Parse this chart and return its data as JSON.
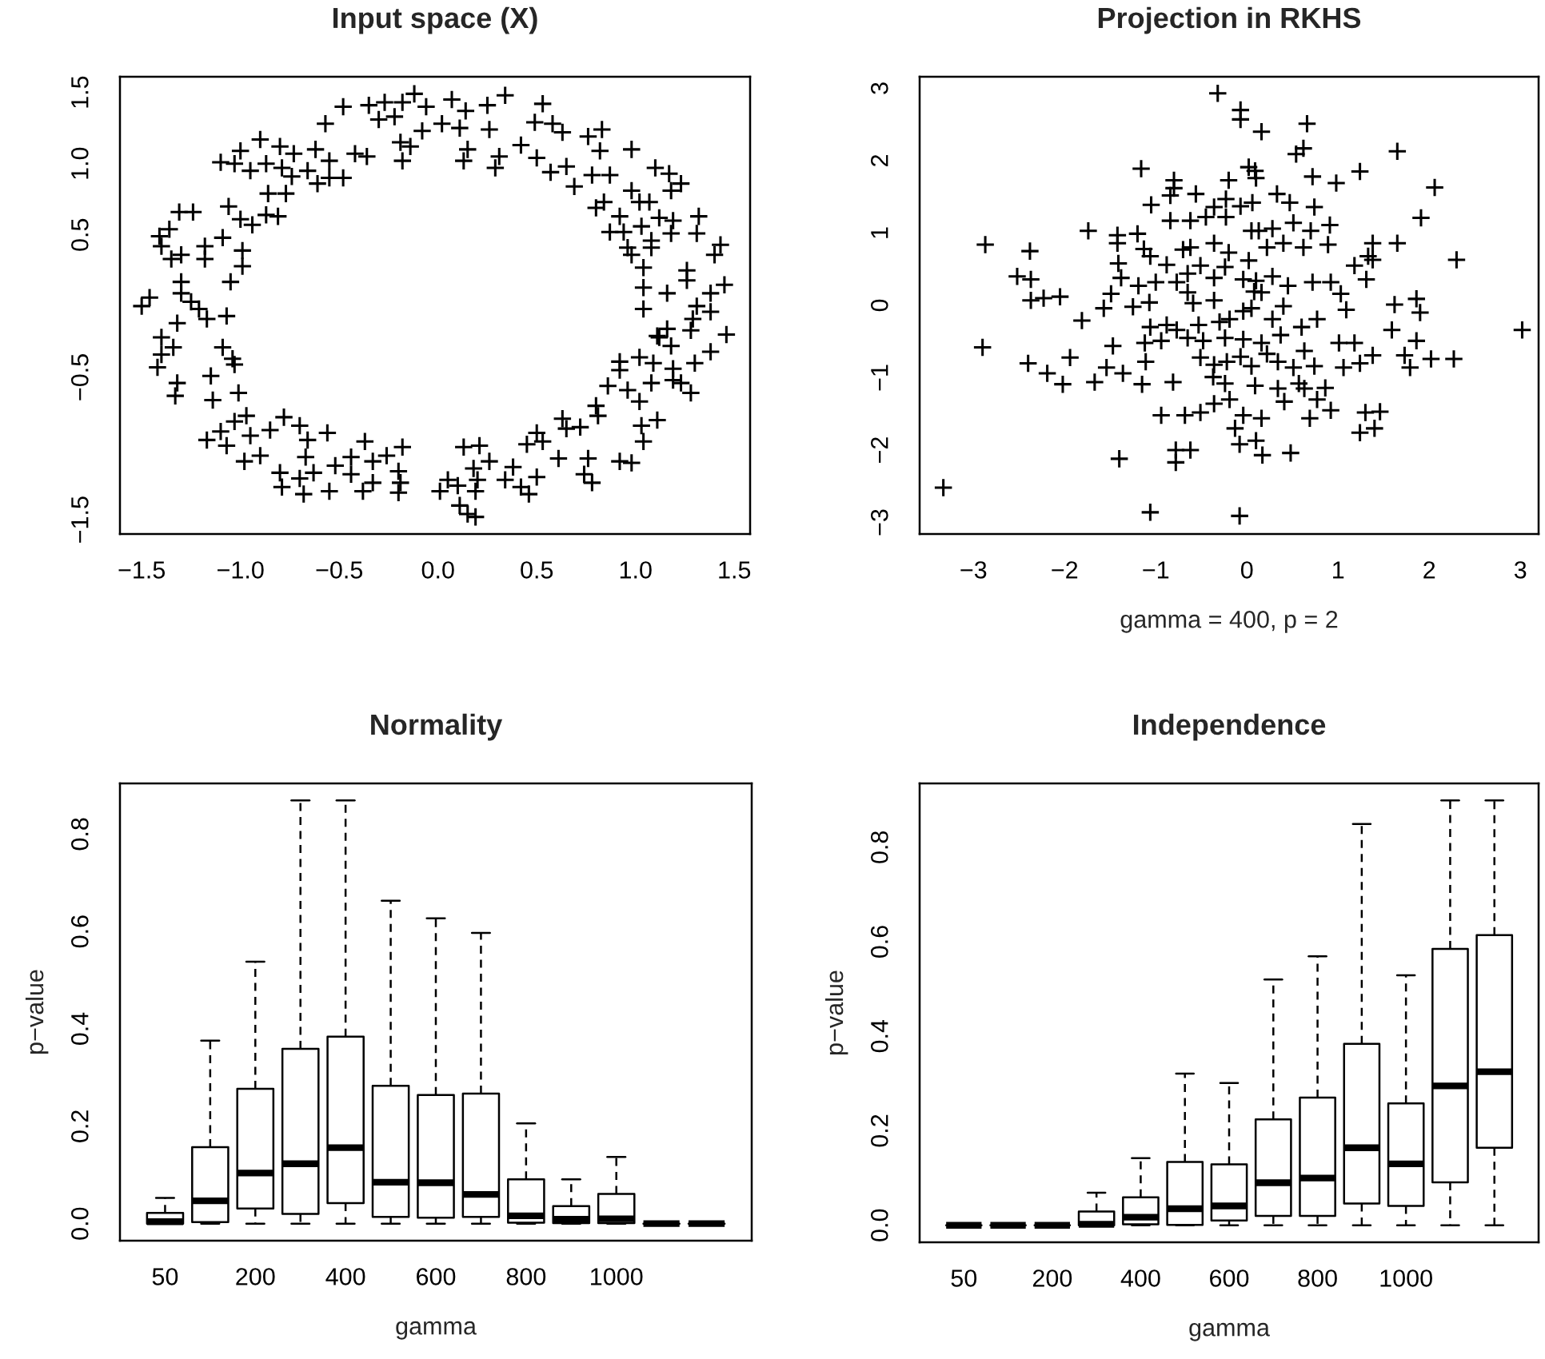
{
  "chart_data": [
    {
      "type": "scatter",
      "title": "Input space (X)",
      "marker": "cross",
      "color": "#000000",
      "xlim": [
        -1.61,
        1.58
      ],
      "ylim": [
        -1.6,
        1.61
      ],
      "xticks": [
        {
          "value": -1.5,
          "label": "−1.5"
        },
        {
          "value": -1.0,
          "label": "−1.0"
        },
        {
          "value": -0.5,
          "label": "−0.5"
        },
        {
          "value": 0,
          "label": "0.0"
        },
        {
          "value": 0.5,
          "label": "0.5"
        },
        {
          "value": 1.0,
          "label": "1.0"
        },
        {
          "value": 1.5,
          "label": "1.5"
        }
      ],
      "yticks": [
        {
          "value": -1.5,
          "label": "−1.5"
        },
        {
          "value": -1.0,
          "label": null
        },
        {
          "value": -0.5,
          "label": "−0.5"
        },
        {
          "value": 0,
          "label": null
        },
        {
          "value": 0.5,
          "label": "0.5"
        },
        {
          "value": 1.0,
          "label": "1.0"
        },
        {
          "value": 1.5,
          "label": "1.5"
        }
      ],
      "x": [
        -0.12,
        0.07,
        0.34,
        0.53,
        -0.48,
        -0.35,
        -0.27,
        -0.18,
        -0.06,
        0.25,
        0.14,
        -0.57,
        -0.3,
        -0.22,
        0.02,
        0.11,
        0.26,
        -0.08,
        0.49,
        0.58,
        0.63,
        0.76,
        0.83,
        -0.19,
        -0.14,
        -0.18,
        0.15,
        0.13,
        0.31,
        0.29,
        0.42,
        0.5,
        0.57,
        0.65,
        0.69,
        0.78,
        0.87,
        0.82,
        0.98,
        -0.9,
        -1.0,
        -0.8,
        -0.62,
        -1.1,
        -1.03,
        -0.95,
        -0.87,
        -0.79,
        -0.73,
        -0.55,
        -0.42,
        -0.36,
        -0.74,
        -0.66,
        -0.61,
        -0.55,
        -0.48,
        -0.86,
        -0.77,
        -1.31,
        -1.24,
        -1.06,
        -1.0,
        -0.94,
        -0.87,
        -0.81,
        -1.36,
        -1.41,
        -1.4,
        -1.09,
        -0.99,
        -1.18,
        -1.35,
        -1.3,
        -1.18,
        -0.99,
        -1.05,
        -1.3,
        -1.3,
        -1.25,
        -1.21,
        -1.17,
        -1.07,
        -1.5,
        -1.46,
        -1.32,
        -1.4,
        -1.34,
        -1.4,
        -1.42,
        -1.09,
        -1.04,
        -1.03,
        -1.15,
        -1.32,
        -1.33,
        -1.01,
        -1.14,
        -1.03,
        -0.97,
        -1.17,
        -1.1,
        -1.07,
        -0.98,
        -0.95,
        -0.9,
        -0.85,
        -0.78,
        -0.7,
        -0.66,
        -0.67,
        -0.56,
        -0.8,
        -0.79,
        -0.7,
        -0.68,
        -0.63,
        -0.55,
        -0.52,
        -0.44,
        -0.44,
        -0.37,
        -0.38,
        -0.33,
        -0.33,
        -0.26,
        -0.18,
        -0.2,
        -0.19,
        -0.2,
        0.01,
        0.05,
        0.1,
        0.11,
        0.15,
        0.19,
        0.19,
        0.2,
        0.13,
        0.21,
        0.18,
        0.26,
        0.34,
        0.38,
        0.42,
        0.46,
        0.5,
        0.45,
        0.5,
        0.53,
        0.61,
        0.65,
        0.72,
        0.63,
        0.76,
        0.74,
        0.78,
        0.81,
        0.8,
        0.86,
        0.92,
        0.98,
        0.96,
        1.02,
        1.03,
        1.04,
        1.11,
        1.08,
        0.92,
        0.92,
        1.02,
        1.09,
        1.18,
        1.16,
        1.11,
        1.12,
        1.19,
        1.19,
        1.23,
        1.28,
        1.3,
        1.38,
        1.46,
        1.28,
        1.29,
        1.31,
        1.38,
        1.04,
        1.04,
        1.04,
        1.16,
        1.26,
        1.26,
        1.38,
        1.45,
        1.43,
        1.4,
        1.31,
        1.32,
        1.19,
        1.18,
        1.12,
        1.08,
        1.08,
        0.96,
        0.98,
        1.03,
        0.94,
        0.87,
        0.92,
        0.8,
        0.84,
        0.98,
        1.02,
        1.07,
        1.18,
        1.1,
        1.17,
        1.23
      ],
      "values": [
        1.49,
        1.45,
        1.48,
        1.42,
        1.4,
        1.41,
        1.43,
        1.43,
        1.4,
        1.41,
        1.37,
        1.28,
        1.31,
        1.33,
        1.28,
        1.25,
        1.24,
        1.23,
        1.29,
        1.28,
        1.22,
        1.19,
        1.24,
        1.15,
        1.12,
        1.02,
        1.1,
        1.02,
        1.05,
        0.97,
        1.13,
        1.04,
        0.94,
        0.98,
        0.84,
        0.92,
        0.92,
        1.09,
        1.1,
        1.17,
        1.09,
        1.12,
        1.1,
        1.01,
        1.0,
        0.95,
        1.0,
        0.97,
        1.07,
        1.02,
        1.07,
        1.05,
        0.91,
        0.95,
        0.86,
        0.9,
        0.9,
        0.79,
        0.79,
        0.66,
        0.66,
        0.7,
        0.61,
        0.57,
        0.64,
        0.63,
        0.54,
        0.49,
        0.42,
        0.48,
        0.39,
        0.42,
        0.33,
        0.36,
        0.33,
        0.28,
        0.17,
        0.17,
        0.09,
        0.03,
        -0.02,
        -0.09,
        -0.07,
        0.0,
        0.06,
        -0.12,
        -0.22,
        -0.29,
        -0.34,
        -0.43,
        -0.29,
        -0.37,
        -0.41,
        -0.49,
        -0.54,
        -0.63,
        -0.61,
        -0.66,
        -0.81,
        -0.77,
        -0.94,
        -0.88,
        -0.98,
        -1.09,
        -0.91,
        -1.05,
        -0.87,
        -0.78,
        -0.84,
        -0.94,
        -1.06,
        -0.89,
        -1.17,
        -1.27,
        -1.21,
        -1.32,
        -1.17,
        -1.3,
        -1.12,
        -1.06,
        -1.18,
        -0.95,
        -1.3,
        -1.24,
        -1.09,
        -1.05,
        -0.99,
        -1.16,
        -1.24,
        -1.31,
        -1.3,
        -1.22,
        -1.26,
        -1.4,
        -1.46,
        -1.48,
        -1.3,
        -1.22,
        -0.99,
        -0.98,
        -1.14,
        -1.09,
        -1.22,
        -1.13,
        -1.27,
        -1.32,
        -1.2,
        -0.97,
        -0.89,
        -0.95,
        -1.07,
        -0.86,
        -0.85,
        -0.79,
        -1.07,
        -1.18,
        -1.24,
        -0.77,
        -0.7,
        -0.56,
        -1.09,
        -1.1,
        -0.59,
        -0.67,
        -0.84,
        -0.95,
        -0.8,
        -0.54,
        -0.45,
        -0.39,
        -0.36,
        -0.4,
        -0.28,
        -0.16,
        -0.21,
        -0.22,
        -0.44,
        -0.52,
        -0.54,
        -0.61,
        -0.4,
        -0.32,
        -0.2,
        -0.17,
        -0.09,
        0.0,
        -0.04,
        -0.02,
        0.13,
        0.27,
        0.09,
        0.25,
        0.18,
        0.09,
        0.15,
        0.43,
        0.36,
        0.51,
        0.63,
        0.6,
        0.51,
        0.62,
        0.41,
        0.46,
        0.41,
        0.36,
        0.56,
        0.52,
        0.52,
        0.63,
        0.69,
        0.73,
        0.81,
        0.73,
        0.73,
        0.81,
        0.97,
        0.93,
        0.86
      ]
    },
    {
      "type": "scatter",
      "title": "Projection in RKHS",
      "xlabel": "gamma = 400, p = 2",
      "marker": "cross",
      "color": "#000000",
      "xlim": [
        -3.59,
        3.2
      ],
      "ylim": [
        -3.16,
        3.16
      ],
      "xticks": [
        {
          "value": -3,
          "label": "−3"
        },
        {
          "value": -2,
          "label": "−2"
        },
        {
          "value": -1,
          "label": "−1"
        },
        0,
        1,
        2,
        3
      ],
      "yticks": [
        {
          "value": -3,
          "label": "−3"
        },
        {
          "value": -2,
          "label": "−2"
        },
        {
          "value": -1,
          "label": "−1"
        },
        0,
        1,
        2,
        3
      ],
      "x": [
        -0.32,
        -0.07,
        -0.07,
        0.16,
        0.66,
        0.54,
        0.62,
        1.65,
        -1.16,
        -0.8,
        -0.8,
        -0.2,
        0.02,
        0.09,
        0.1,
        0.72,
        0.98,
        1.24,
        2.06,
        -1.05,
        -0.84,
        -0.56,
        -0.36,
        -0.23,
        -0.07,
        0.06,
        0.33,
        0.47,
        0.74,
        1.91,
        -0.84,
        -0.62,
        -0.45,
        -0.23,
        0.05,
        0.13,
        0.28,
        0.51,
        0.7,
        0.91,
        -1.74,
        -1.42,
        -1.2,
        -2.87,
        -2.38,
        -1.42,
        -1.13,
        -1.06,
        -0.88,
        -0.7,
        -0.62,
        -0.36,
        -0.2,
        0.02,
        0.22,
        0.4,
        0.62,
        0.89,
        1.38,
        1.65,
        1.33,
        1.38,
        2.3,
        -2.52,
        -2.37,
        -1.41,
        -1.38,
        -1.19,
        -1.0,
        -0.77,
        -0.65,
        -0.51,
        -0.36,
        -0.24,
        -0.04,
        0.1,
        0.28,
        0.45,
        0.72,
        0.92,
        1.18,
        1.31,
        -2.37,
        -2.23,
        -2.05,
        -1.49,
        -0.65,
        -0.59,
        -0.36,
        0.08,
        0.16,
        0.4,
        1.03,
        1.62,
        1.86,
        -1.81,
        -1.57,
        -1.25,
        -1.07,
        1.09,
        1.9,
        3.02,
        -2.9,
        -1.06,
        -0.88,
        -0.77,
        -0.53,
        -0.3,
        -0.19,
        -0.04,
        0.05,
        0.28,
        0.6,
        0.77,
        1.59,
        -1.47,
        -1.12,
        -0.94,
        -0.65,
        -0.48,
        -0.24,
        -0.04,
        0.16,
        0.37,
        0.63,
        1.01,
        1.18,
        1.86,
        -2.4,
        -2.19,
        -2.02,
        -1.94,
        -1.67,
        -1.54,
        -1.36,
        -1.15,
        -1.11,
        -0.51,
        -0.36,
        -0.22,
        -0.07,
        0.05,
        0.22,
        0.34,
        0.51,
        0.74,
        1.06,
        1.24,
        1.38,
        1.73,
        1.79,
        2.02,
        2.27,
        -0.81,
        -0.37,
        -0.24,
        0.09,
        0.34,
        0.57,
        0.63,
        0.86,
        -0.36,
        -0.19,
        0.41,
        0.77,
        -0.94,
        -0.68,
        -0.51,
        -0.04,
        0.16,
        0.69,
        0.92,
        1.3,
        1.46,
        1.24,
        1.4,
        -0.13,
        -0.08,
        0.1,
        0.17,
        0.48,
        -0.78,
        -0.62,
        -0.78,
        -1.4,
        -3.33,
        -1.06,
        -0.08
      ],
      "values": [
        2.93,
        2.7,
        2.57,
        2.4,
        2.51,
        2.09,
        2.17,
        2.13,
        1.89,
        1.73,
        1.62,
        1.73,
        1.91,
        1.86,
        1.76,
        1.78,
        1.69,
        1.85,
        1.63,
        1.39,
        1.52,
        1.54,
        1.36,
        1.47,
        1.37,
        1.42,
        1.54,
        1.42,
        1.36,
        1.21,
        1.17,
        1.17,
        1.22,
        1.22,
        1.03,
        1.03,
        1.06,
        1.14,
        1.03,
        1.11,
        1.03,
        0.97,
        0.99,
        0.84,
        0.75,
        0.86,
        0.78,
        0.68,
        0.56,
        0.77,
        0.8,
        0.86,
        0.73,
        0.62,
        0.8,
        0.86,
        0.8,
        0.84,
        0.86,
        0.86,
        0.68,
        0.63,
        0.63,
        0.4,
        0.36,
        0.58,
        0.38,
        0.27,
        0.32,
        0.32,
        0.44,
        0.55,
        0.38,
        0.53,
        0.36,
        0.34,
        0.4,
        0.27,
        0.32,
        0.32,
        0.55,
        0.36,
        0.07,
        0.1,
        0.12,
        0.16,
        0.18,
        0.03,
        0.07,
        0.19,
        0.18,
        -0.01,
        0.16,
        0.01,
        0.09,
        -0.21,
        -0.04,
        -0.02,
        0.04,
        -0.06,
        -0.1,
        -0.34,
        -0.58,
        -0.3,
        -0.27,
        -0.34,
        -0.27,
        -0.23,
        -0.19,
        -0.08,
        -0.04,
        -0.19,
        -0.3,
        -0.19,
        -0.34,
        -0.56,
        -0.52,
        -0.49,
        -0.45,
        -0.49,
        -0.45,
        -0.47,
        -0.52,
        -0.41,
        -0.63,
        -0.52,
        -0.52,
        -0.49,
        -0.8,
        -0.94,
        -1.09,
        -0.72,
        -1.06,
        -0.86,
        -0.94,
        -1.09,
        -0.78,
        -0.72,
        -0.82,
        -0.78,
        -0.71,
        -0.84,
        -0.67,
        -0.78,
        -0.86,
        -0.84,
        -0.86,
        -0.8,
        -0.69,
        -0.69,
        -0.86,
        -0.74,
        -0.74,
        -1.06,
        -0.99,
        -1.08,
        -1.11,
        -1.15,
        -1.08,
        -1.15,
        -1.14,
        -1.36,
        -1.3,
        -1.33,
        -1.3,
        -1.52,
        -1.52,
        -1.48,
        -1.52,
        -1.56,
        -1.56,
        -1.45,
        -1.48,
        -1.47,
        -1.76,
        -1.7,
        -1.7,
        -1.92,
        -1.87,
        -2.07,
        -2.04,
        -2.0,
        -2.0,
        -2.17,
        -2.12,
        -2.52,
        -2.86,
        -2.91
      ]
    },
    {
      "type": "box",
      "title": "Normality",
      "xlabel": "gamma",
      "ylabel": "p−value",
      "categories": [
        "50",
        null,
        "200",
        null,
        "400",
        null,
        "600",
        null,
        "800",
        null,
        "1000",
        null,
        null
      ],
      "ylim": [
        -0.035,
        0.904
      ],
      "yticks": [
        {
          "value": 0,
          "label": "0.0"
        },
        {
          "value": 0.2,
          "label": "0.2"
        },
        {
          "value": 0.4,
          "label": "0.4"
        },
        {
          "value": 0.6,
          "label": "0.6"
        },
        {
          "value": 0.8,
          "label": "0.8"
        }
      ],
      "boxes": [
        {
          "low": 0,
          "q1": 0,
          "median": 0.004,
          "q3": 0.022,
          "high": 0.053
        },
        {
          "low": 0,
          "q1": 0.003,
          "median": 0.047,
          "q3": 0.157,
          "high": 0.376
        },
        {
          "low": 0,
          "q1": 0.031,
          "median": 0.104,
          "q3": 0.277,
          "high": 0.538
        },
        {
          "low": 0,
          "q1": 0.02,
          "median": 0.123,
          "q3": 0.359,
          "high": 0.869
        },
        {
          "low": 0,
          "q1": 0.042,
          "median": 0.156,
          "q3": 0.384,
          "high": 0.869
        },
        {
          "low": 0,
          "q1": 0.014,
          "median": 0.085,
          "q3": 0.283,
          "high": 0.663
        },
        {
          "low": 0,
          "q1": 0.012,
          "median": 0.084,
          "q3": 0.264,
          "high": 0.627
        },
        {
          "low": 0,
          "q1": 0.014,
          "median": 0.06,
          "q3": 0.267,
          "high": 0.597
        },
        {
          "low": 0,
          "q1": 0.002,
          "median": 0.016,
          "q3": 0.091,
          "high": 0.206
        },
        {
          "low": 0,
          "q1": 0.001,
          "median": 0.009,
          "q3": 0.036,
          "high": 0.091
        },
        {
          "low": 0,
          "q1": 0.001,
          "median": 0.01,
          "q3": 0.061,
          "high": 0.137
        },
        {
          "low": 0,
          "q1": 0,
          "median": 0,
          "q3": 0,
          "high": 0
        },
        {
          "low": 0,
          "q1": 0,
          "median": 0,
          "q3": 0,
          "high": 0
        }
      ]
    },
    {
      "type": "box",
      "title": "Independence",
      "xlabel": "gamma",
      "ylabel": "p−value",
      "categories": [
        "50",
        null,
        "200",
        null,
        "400",
        null,
        "600",
        null,
        "800",
        null,
        "1000",
        null,
        null
      ],
      "ylim": [
        -0.036,
        0.935
      ],
      "yticks": [
        {
          "value": 0,
          "label": "0.0"
        },
        {
          "value": 0.2,
          "label": "0.2"
        },
        {
          "value": 0.4,
          "label": "0.4"
        },
        {
          "value": 0.6,
          "label": "0.6"
        },
        {
          "value": 0.8,
          "label": "0.8"
        }
      ],
      "boxes": [
        {
          "low": 0,
          "q1": 0,
          "median": 0,
          "q3": 0,
          "high": 0
        },
        {
          "low": 0,
          "q1": 0,
          "median": 0,
          "q3": 0,
          "high": 0
        },
        {
          "low": 0,
          "q1": 0,
          "median": 0,
          "q3": 0,
          "high": 0
        },
        {
          "low": 0,
          "q1": 0,
          "median": 0.002,
          "q3": 0.029,
          "high": 0.069
        },
        {
          "low": 0,
          "q1": 0.002,
          "median": 0.017,
          "q3": 0.059,
          "high": 0.142
        },
        {
          "low": 0,
          "q1": 0.001,
          "median": 0.035,
          "q3": 0.134,
          "high": 0.321
        },
        {
          "low": 0,
          "q1": 0.01,
          "median": 0.041,
          "q3": 0.129,
          "high": 0.301
        },
        {
          "low": 0,
          "q1": 0.02,
          "median": 0.09,
          "q3": 0.224,
          "high": 0.52
        },
        {
          "low": 0,
          "q1": 0.02,
          "median": 0.1,
          "q3": 0.27,
          "high": 0.569
        },
        {
          "low": 0,
          "q1": 0.046,
          "median": 0.164,
          "q3": 0.384,
          "high": 0.849
        },
        {
          "low": 0,
          "q1": 0.041,
          "median": 0.13,
          "q3": 0.258,
          "high": 0.529
        },
        {
          "low": 0,
          "q1": 0.091,
          "median": 0.295,
          "q3": 0.585,
          "high": 0.899
        },
        {
          "low": 0,
          "q1": 0.164,
          "median": 0.325,
          "q3": 0.614,
          "high": 0.899
        }
      ]
    }
  ]
}
